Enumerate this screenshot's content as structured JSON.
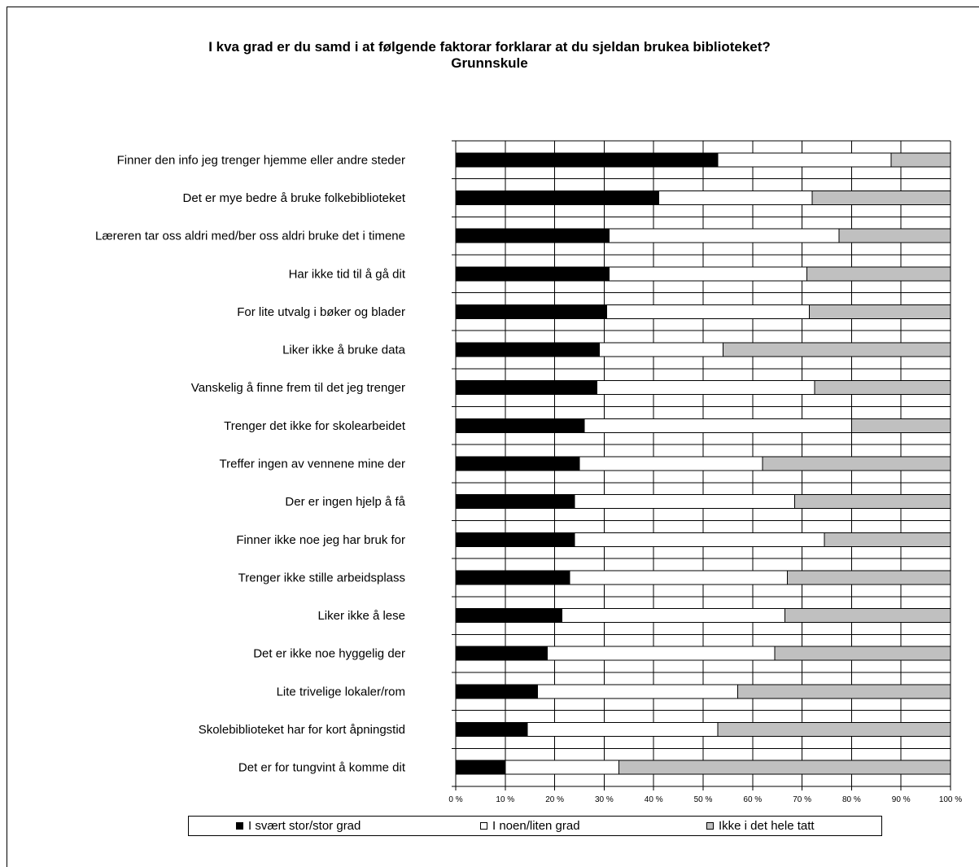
{
  "chart_data": {
    "type": "bar",
    "orientation": "horizontal",
    "stacked": "percent",
    "title": "I kva grad er du samd i at følgende faktorar forklarar at du sjeldan brukea biblioteket?",
    "subtitle": "Grunnskule",
    "categories": [
      "Finner den info jeg trenger hjemme eller andre steder",
      "Det er mye bedre å bruke folkebiblioteket",
      "Læreren tar oss aldri med/ber oss aldri bruke det i timene",
      "Har ikke tid til å gå dit",
      "For lite utvalg i bøker og blader",
      "Liker ikke å bruke data",
      "Vanskelig å finne frem til det jeg trenger",
      "Trenger det ikke for skolearbeidet",
      "Treffer ingen av vennene mine der",
      "Der er ingen hjelp å få",
      "Finner ikke noe jeg har bruk for",
      "Trenger ikke stille arbeidsplass",
      "Liker ikke å lese",
      "Det er ikke noe hyggelig der",
      "Lite trivelige lokaler/rom",
      "Skolebiblioteket har for kort åpningstid",
      "Det er for tungvint å komme dit"
    ],
    "series": [
      {
        "name": "I svært stor/stor grad",
        "color": "#000000",
        "values": [
          53,
          41,
          31,
          31,
          30.5,
          29,
          28.5,
          26,
          25,
          24,
          24,
          23,
          21.5,
          18.5,
          16.5,
          14.5,
          10
        ]
      },
      {
        "name": "I noen/liten grad",
        "color": "#ffffff",
        "values": [
          35,
          31,
          46.5,
          40,
          41,
          25,
          44,
          54,
          37,
          44.5,
          50.5,
          44,
          45,
          46,
          40.5,
          38.5,
          23
        ]
      },
      {
        "name": "Ikke i det hele tatt",
        "color": "#c0c0c0",
        "values": [
          12,
          28,
          22.5,
          29,
          28.5,
          46,
          27.5,
          20,
          38,
          31.5,
          25.5,
          33,
          33.5,
          35.5,
          43,
          47,
          67
        ]
      }
    ],
    "xlim": [
      0,
      100
    ],
    "xticks": [
      "0 %",
      "10 %",
      "20 %",
      "30 %",
      "40 %",
      "50 %",
      "60 %",
      "70 %",
      "80 %",
      "90 %",
      "100 %"
    ],
    "grid": true,
    "legend_position": "bottom"
  },
  "legend": {
    "items": [
      {
        "label": "I svært stor/stor grad",
        "color": "#000000"
      },
      {
        "label": "I noen/liten grad",
        "color": "#ffffff"
      },
      {
        "label": "Ikke i det hele tatt",
        "color": "#c0c0c0"
      }
    ]
  }
}
